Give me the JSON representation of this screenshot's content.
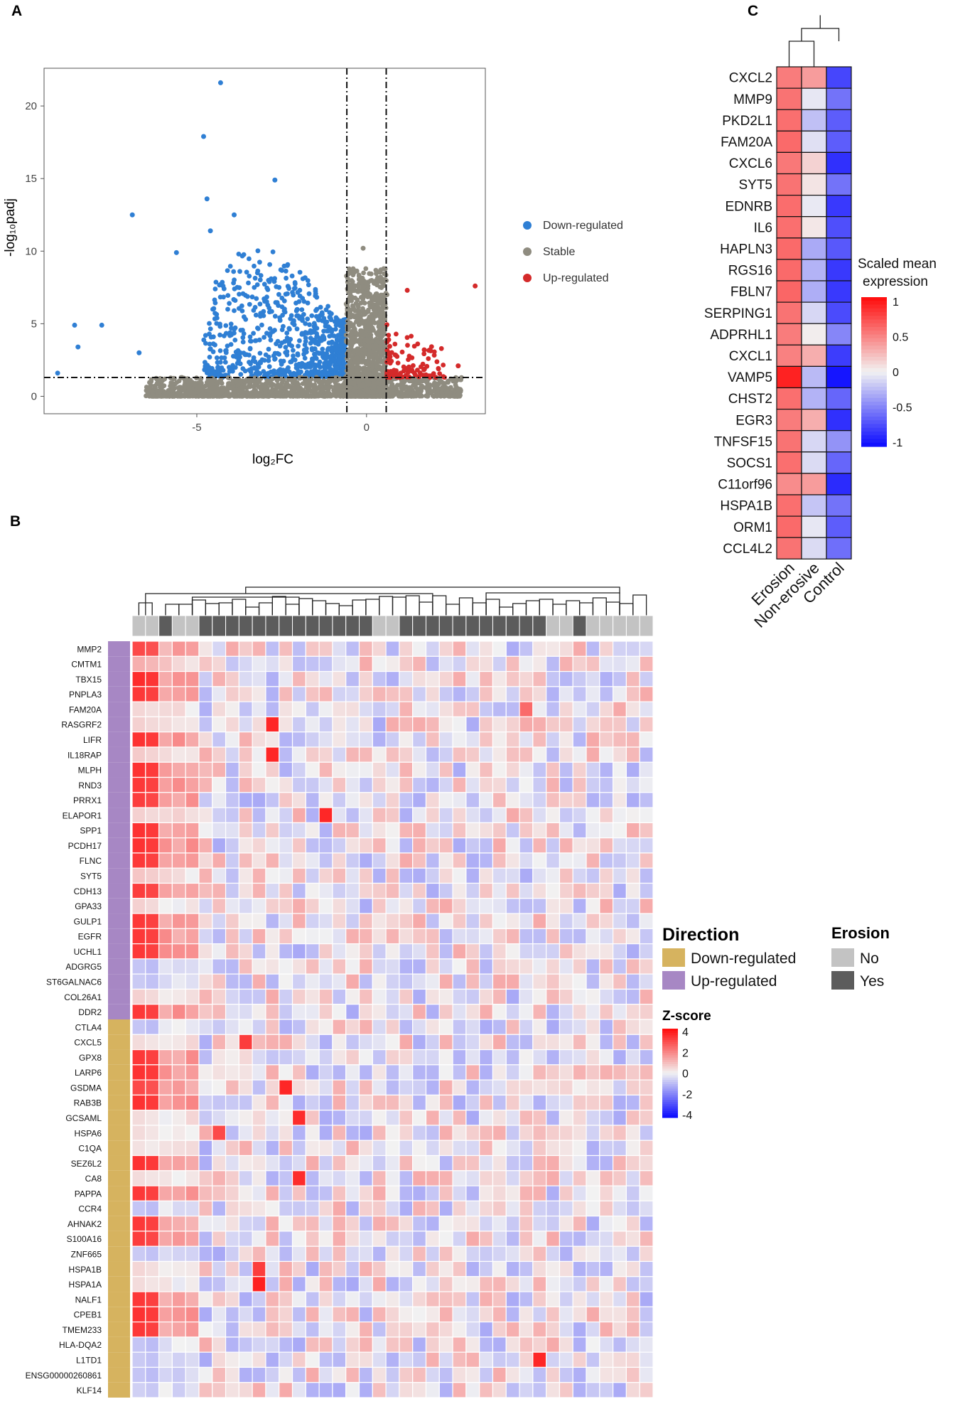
{
  "panel_labels": {
    "a": "A",
    "b": "B",
    "c": "C"
  },
  "colors": {
    "down": "#2f7fd4",
    "stable": "#8f8c80",
    "up": "#d42a2a",
    "dir_down": "#d6b35f",
    "dir_up": "#a787c4",
    "erosion_no": "#c3c3c3",
    "erosion_yes": "#5c5c5c",
    "heat_low": "#1010ff",
    "heat_mid": "#f2f2f2",
    "heat_high": "#ff1010"
  },
  "chart_data": [
    {
      "id": "volcano",
      "type": "scatter",
      "title": "",
      "xlabel": "log₂FC",
      "ylabel": "-log₁₀padj",
      "xlim": [
        -9.5,
        3.5
      ],
      "ylim": [
        -1.2,
        22.6
      ],
      "xticks": [
        -5,
        0
      ],
      "yticks": [
        0,
        5,
        10,
        15,
        20
      ],
      "fc_thresholds": [
        -0.58,
        0.58
      ],
      "padj_threshold": 1.3,
      "legend": [
        {
          "label": "Down-regulated",
          "color_key": "down"
        },
        {
          "label": "Stable",
          "color_key": "stable"
        },
        {
          "label": "Up-regulated",
          "color_key": "up"
        }
      ],
      "notable_points": [
        {
          "x": -4.3,
          "y": 21.6,
          "group": "down"
        },
        {
          "x": -4.8,
          "y": 17.9,
          "group": "down"
        },
        {
          "x": -4.7,
          "y": 13.6,
          "group": "down"
        },
        {
          "x": -2.7,
          "y": 14.9,
          "group": "down"
        },
        {
          "x": -6.9,
          "y": 12.5,
          "group": "down"
        },
        {
          "x": -3.9,
          "y": 12.5,
          "group": "down"
        },
        {
          "x": -4.6,
          "y": 11.4,
          "group": "down"
        },
        {
          "x": -5.6,
          "y": 9.9,
          "group": "down"
        },
        {
          "x": -7.8,
          "y": 4.9,
          "group": "down"
        },
        {
          "x": -8.6,
          "y": 4.9,
          "group": "down"
        },
        {
          "x": -8.5,
          "y": 3.4,
          "group": "down"
        },
        {
          "x": -9.1,
          "y": 1.6,
          "group": "down"
        },
        {
          "x": -6.7,
          "y": 3.0,
          "group": "down"
        },
        {
          "x": 3.2,
          "y": 7.6,
          "group": "up"
        },
        {
          "x": 1.2,
          "y": 7.3,
          "group": "up"
        },
        {
          "x": 2.7,
          "y": 2.1,
          "group": "up"
        },
        {
          "x": 1.7,
          "y": 3.2,
          "group": "up"
        },
        {
          "x": 0.6,
          "y": 7.0,
          "group": "stable"
        },
        {
          "x": -0.1,
          "y": 10.2,
          "group": "stable"
        }
      ],
      "clouds": [
        {
          "group": "down",
          "x": [
            -4.8,
            -0.62
          ],
          "y": [
            1.3,
            10.2
          ],
          "count": 820
        },
        {
          "group": "stable",
          "x": [
            -0.6,
            0.58
          ],
          "y": [
            0.0,
            8.8
          ],
          "count": 1200
        },
        {
          "group": "stable",
          "x": [
            -6.5,
            2.8
          ],
          "y": [
            0.0,
            1.3
          ],
          "count": 1300
        },
        {
          "group": "up",
          "x": [
            0.6,
            2.3
          ],
          "y": [
            1.3,
            5.2
          ],
          "count": 110
        }
      ]
    },
    {
      "id": "heatmap_samples",
      "type": "heatmap",
      "value_label": "Z-score",
      "scale_ticks": [
        4,
        2,
        0,
        -2,
        -4
      ],
      "annotation_titles": {
        "direction": "Direction",
        "erosion": "Erosion"
      },
      "direction_legend": [
        {
          "label": "Down-regulated",
          "color_key": "dir_down"
        },
        {
          "label": "Up-regulated",
          "color_key": "dir_up"
        }
      ],
      "erosion_legend": [
        {
          "label": "No",
          "color_key": "erosion_no"
        },
        {
          "label": "Yes",
          "color_key": "erosion_yes"
        }
      ],
      "n_samples": 39,
      "erosion_status": [
        0,
        0,
        1,
        0,
        0,
        1,
        1,
        1,
        1,
        1,
        1,
        1,
        1,
        1,
        1,
        1,
        1,
        1,
        0,
        0,
        1,
        1,
        1,
        1,
        1,
        1,
        1,
        1,
        1,
        1,
        1,
        0,
        0,
        1,
        0,
        0,
        0,
        0,
        0
      ],
      "genes": [
        "MMP2",
        "CMTM1",
        "TBX15",
        "PNPLA3",
        "FAM20A",
        "RASGRF2",
        "LIFR",
        "IL18RAP",
        "MLPH",
        "RND3",
        "PRRX1",
        "ELAPOR1",
        "SPP1",
        "PCDH17",
        "FLNC",
        "SYT5",
        "CDH13",
        "GPA33",
        "GULP1",
        "EGFR",
        "UCHL1",
        "ADGRG5",
        "ST6GALNAC6",
        "COL26A1",
        "DDR2",
        "CTLA4",
        "CXCL5",
        "GPX8",
        "LARP6",
        "GSDMA",
        "RAB3B",
        "GCSAML",
        "HSPA6",
        "C1QA",
        "SEZ6L2",
        "CA8",
        "PAPPA",
        "CCR4",
        "AHNAK2",
        "S100A16",
        "ZNF665",
        "HSPA1B",
        "HSPA1A",
        "NALF1",
        "CPEB1",
        "TMEM233",
        "HLA-DQA2",
        "L1TD1",
        "ENSG00000260861",
        "KLF14"
      ],
      "direction": [
        "up",
        "up",
        "up",
        "up",
        "up",
        "up",
        "up",
        "up",
        "up",
        "up",
        "up",
        "up",
        "up",
        "up",
        "up",
        "up",
        "up",
        "up",
        "up",
        "up",
        "up",
        "up",
        "up",
        "up",
        "up",
        "down",
        "down",
        "down",
        "down",
        "down",
        "down",
        "down",
        "down",
        "down",
        "down",
        "down",
        "down",
        "down",
        "down",
        "down",
        "down",
        "down",
        "down",
        "down",
        "down",
        "down",
        "down",
        "down",
        "down",
        "down"
      ],
      "first_two_sample_z": [
        3.0,
        1.2,
        3.5,
        3.3,
        0.5,
        0.6,
        3.4,
        0.7,
        3.4,
        3.3,
        3.2,
        0.6,
        3.4,
        3.4,
        3.3,
        0.8,
        3.2,
        0.6,
        3.3,
        3.3,
        3.3,
        -0.8,
        -0.7,
        0.6,
        3.3,
        -0.8,
        0.4,
        3.3,
        3.4,
        3.0,
        3.4,
        0.4,
        0.4,
        0.3,
        3.4,
        0.4,
        3.3,
        -0.8,
        3.3,
        3.2,
        -0.7,
        0.5,
        0.4,
        3.3,
        3.4,
        3.3,
        -0.8,
        -0.7,
        -0.8,
        -0.6
      ],
      "hotspots": [
        {
          "gene": "RASGRF2",
          "sample": 10,
          "z": 3.6
        },
        {
          "gene": "IL18RAP",
          "sample": 10,
          "z": 3.6
        },
        {
          "gene": "ELAPOR1",
          "sample": 14,
          "z": 3.6
        },
        {
          "gene": "FAM20A",
          "sample": 29,
          "z": 2.4
        },
        {
          "gene": "CXCL5",
          "sample": 8,
          "z": 3.2
        },
        {
          "gene": "GSDMA",
          "sample": 11,
          "z": 3.6
        },
        {
          "gene": "GCSAML",
          "sample": 12,
          "z": 3.5
        },
        {
          "gene": "CA8",
          "sample": 12,
          "z": 3.5
        },
        {
          "gene": "HSPA6",
          "sample": 6,
          "z": 3.0
        },
        {
          "gene": "HSPA1A",
          "sample": 9,
          "z": 3.7
        },
        {
          "gene": "HSPA1B",
          "sample": 9,
          "z": 3.2
        },
        {
          "gene": "L1TD1",
          "sample": 30,
          "z": 3.6
        }
      ]
    },
    {
      "id": "heatmap_groups",
      "type": "heatmap",
      "value_label": "Scaled mean expression",
      "scale_ticks": [
        1,
        0.5,
        0,
        -0.5,
        -1
      ],
      "columns": [
        "Erosion",
        "Non-erosive",
        "Control"
      ],
      "genes": [
        "CXCL2",
        "MMP9",
        "PKD2L1",
        "FAM20A",
        "CXCL6",
        "SYT5",
        "EDNRB",
        "IL6",
        "HAPLN3",
        "RGS16",
        "FBLN7",
        "SERPING1",
        "ADPRHL1",
        "CXCL1",
        "VAMP5",
        "CHST2",
        "EGR3",
        "TNFSF15",
        "SOCS1",
        "C11orf96",
        "HSPA1B",
        "ORM1",
        "CCL4L2"
      ],
      "values": [
        [
          0.52,
          0.38,
          -0.76
        ],
        [
          0.56,
          -0.05,
          -0.56
        ],
        [
          0.58,
          -0.22,
          -0.66
        ],
        [
          0.6,
          -0.08,
          -0.66
        ],
        [
          0.54,
          0.14,
          -0.86
        ],
        [
          0.56,
          0.06,
          -0.56
        ],
        [
          0.59,
          -0.04,
          -0.82
        ],
        [
          0.58,
          0.05,
          -0.72
        ],
        [
          0.6,
          -0.32,
          -0.68
        ],
        [
          0.6,
          -0.28,
          -0.82
        ],
        [
          0.62,
          -0.3,
          -0.82
        ],
        [
          0.56,
          -0.12,
          -0.74
        ],
        [
          0.52,
          0.02,
          -0.48
        ],
        [
          0.5,
          0.3,
          -0.8
        ],
        [
          0.92,
          -0.25,
          -0.98
        ],
        [
          0.58,
          -0.28,
          -0.62
        ],
        [
          0.52,
          0.3,
          -0.86
        ],
        [
          0.56,
          -0.12,
          -0.42
        ],
        [
          0.58,
          -0.1,
          -0.62
        ],
        [
          0.45,
          0.38,
          -0.88
        ],
        [
          0.58,
          -0.2,
          -0.56
        ],
        [
          0.6,
          -0.05,
          -0.66
        ],
        [
          0.56,
          -0.1,
          -0.58
        ]
      ]
    }
  ]
}
